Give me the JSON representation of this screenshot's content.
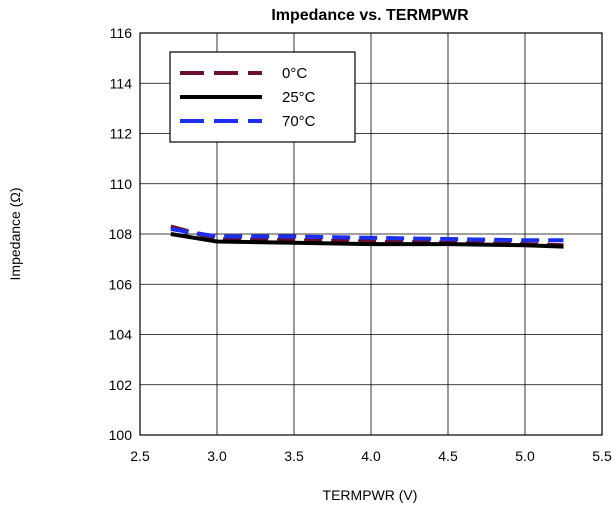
{
  "chart_data": {
    "type": "line",
    "title": "Impedance vs. TERMPWR",
    "xlabel": "TERMPWR (V)",
    "ylabel": "Impedance (Ω)",
    "xlim": [
      2.5,
      5.5
    ],
    "ylim": [
      100,
      116
    ],
    "xticks": [
      2.5,
      3.0,
      3.5,
      4.0,
      4.5,
      5.0,
      5.5
    ],
    "xtick_labels": [
      "2.5",
      "3.0",
      "3.5",
      "4.0",
      "4.5",
      "5.0",
      "5.5"
    ],
    "yticks": [
      100,
      102,
      104,
      106,
      108,
      110,
      112,
      114,
      116
    ],
    "ytick_labels": [
      "100",
      "102",
      "104",
      "106",
      "108",
      "110",
      "112",
      "114",
      "116"
    ],
    "grid": true,
    "legend_position": "top-left",
    "series": [
      {
        "name": "0°C",
        "color": "#6b0f2e",
        "style": "dashed",
        "x": [
          2.7,
          3.0,
          3.5,
          4.0,
          4.5,
          5.0,
          5.25
        ],
        "y": [
          108.3,
          107.8,
          107.75,
          107.7,
          107.65,
          107.6,
          107.55
        ]
      },
      {
        "name": "25°C",
        "color": "#000000",
        "style": "solid",
        "x": [
          2.7,
          3.0,
          3.5,
          4.0,
          4.5,
          5.0,
          5.25
        ],
        "y": [
          108.0,
          107.7,
          107.65,
          107.6,
          107.6,
          107.55,
          107.5
        ]
      },
      {
        "name": "70°C",
        "color": "#1a2ff0",
        "style": "dashed",
        "x": [
          2.7,
          3.0,
          3.5,
          4.0,
          4.5,
          5.0,
          5.25
        ],
        "y": [
          108.2,
          107.9,
          107.9,
          107.85,
          107.8,
          107.75,
          107.75
        ]
      }
    ]
  }
}
